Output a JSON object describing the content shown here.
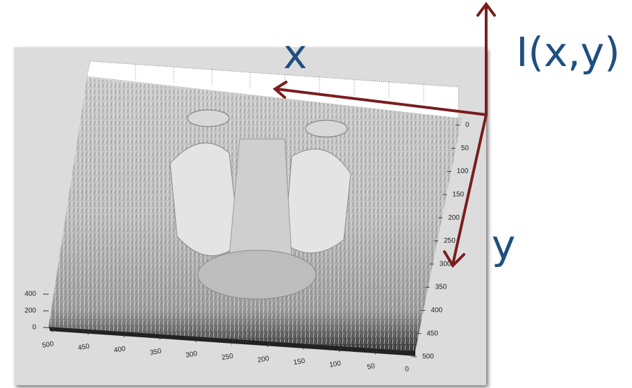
{
  "annotations": {
    "x": "x",
    "y": "y",
    "intensity": "I(x,y)"
  },
  "axes": {
    "x_ticks": [
      500,
      450,
      400,
      350,
      300,
      250,
      200,
      150,
      100,
      50,
      0
    ],
    "y_ticks": [
      0,
      50,
      100,
      150,
      200,
      250,
      300,
      350,
      400,
      450,
      500
    ],
    "z_ticks": [
      400,
      200,
      0
    ]
  }
}
